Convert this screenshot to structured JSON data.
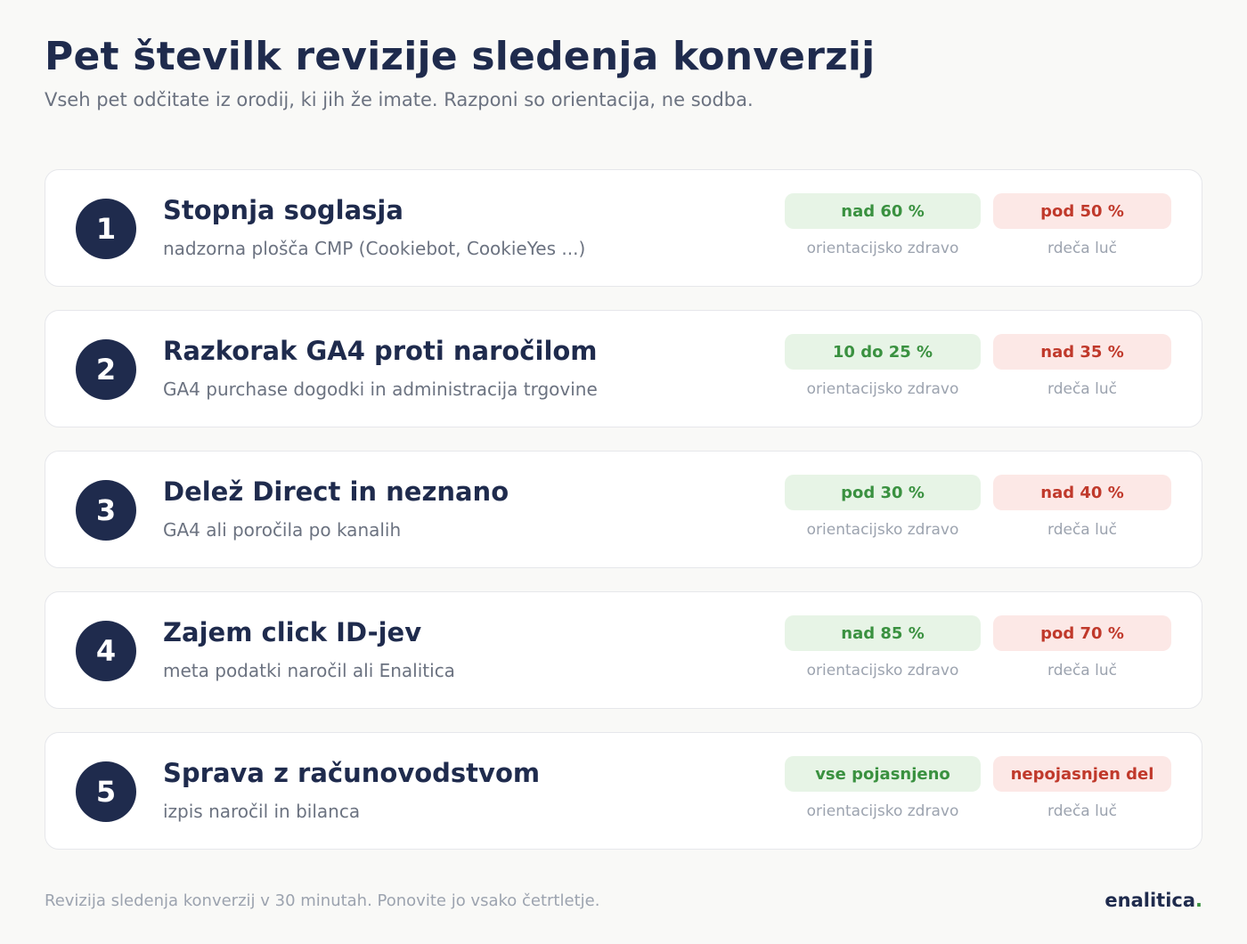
{
  "header": {
    "title": "Pet številk revizije sledenja konverzij",
    "subtitle": "Vseh pet odčitate iz orodij, ki jih že imate. Razponi so orientacija, ne sodba."
  },
  "colors": {
    "navy": "#1f2b4d",
    "healthy_text": "#3a9140",
    "healthy_bg": "#e7f4e6",
    "alert_text": "#c0392b",
    "alert_bg": "#fce8e6"
  },
  "metrics": [
    {
      "number": "1",
      "name": "Stopnja soglasja",
      "source": "nadzorna plošča CMP (Cookiebot, CookieYes ...)",
      "healthy": "nad 60 %",
      "healthy_caption": "orientacijsko zdravo",
      "alert": "pod 50 %",
      "alert_caption": "rdeča luč"
    },
    {
      "number": "2",
      "name": "Razkorak GA4 proti naročilom",
      "source": "GA4 purchase dogodki in administracija trgovine",
      "healthy": "10 do 25 %",
      "healthy_caption": "orientacijsko zdravo",
      "alert": "nad 35 %",
      "alert_caption": "rdeča luč"
    },
    {
      "number": "3",
      "name": "Delež Direct in neznano",
      "source": "GA4 ali poročila po kanalih",
      "healthy": "pod 30 %",
      "healthy_caption": "orientacijsko zdravo",
      "alert": "nad 40 %",
      "alert_caption": "rdeča luč"
    },
    {
      "number": "4",
      "name": "Zajem click ID-jev",
      "source": "meta podatki naročil ali Enalitica",
      "healthy": "nad 85 %",
      "healthy_caption": "orientacijsko zdravo",
      "alert": "pod 70 %",
      "alert_caption": "rdeča luč"
    },
    {
      "number": "5",
      "name": "Sprava z računovodstvom",
      "source": "izpis naročil in bilanca",
      "healthy": "vse pojasnjeno",
      "healthy_caption": "orientacijsko zdravo",
      "alert": "nepojasnjen del",
      "alert_caption": "rdeča luč"
    }
  ],
  "footer": {
    "note": "Revizija sledenja konverzij v 30 minutah. Ponovite jo vsako četrtletje.",
    "brand": "enalitica",
    "brand_dot": "."
  }
}
